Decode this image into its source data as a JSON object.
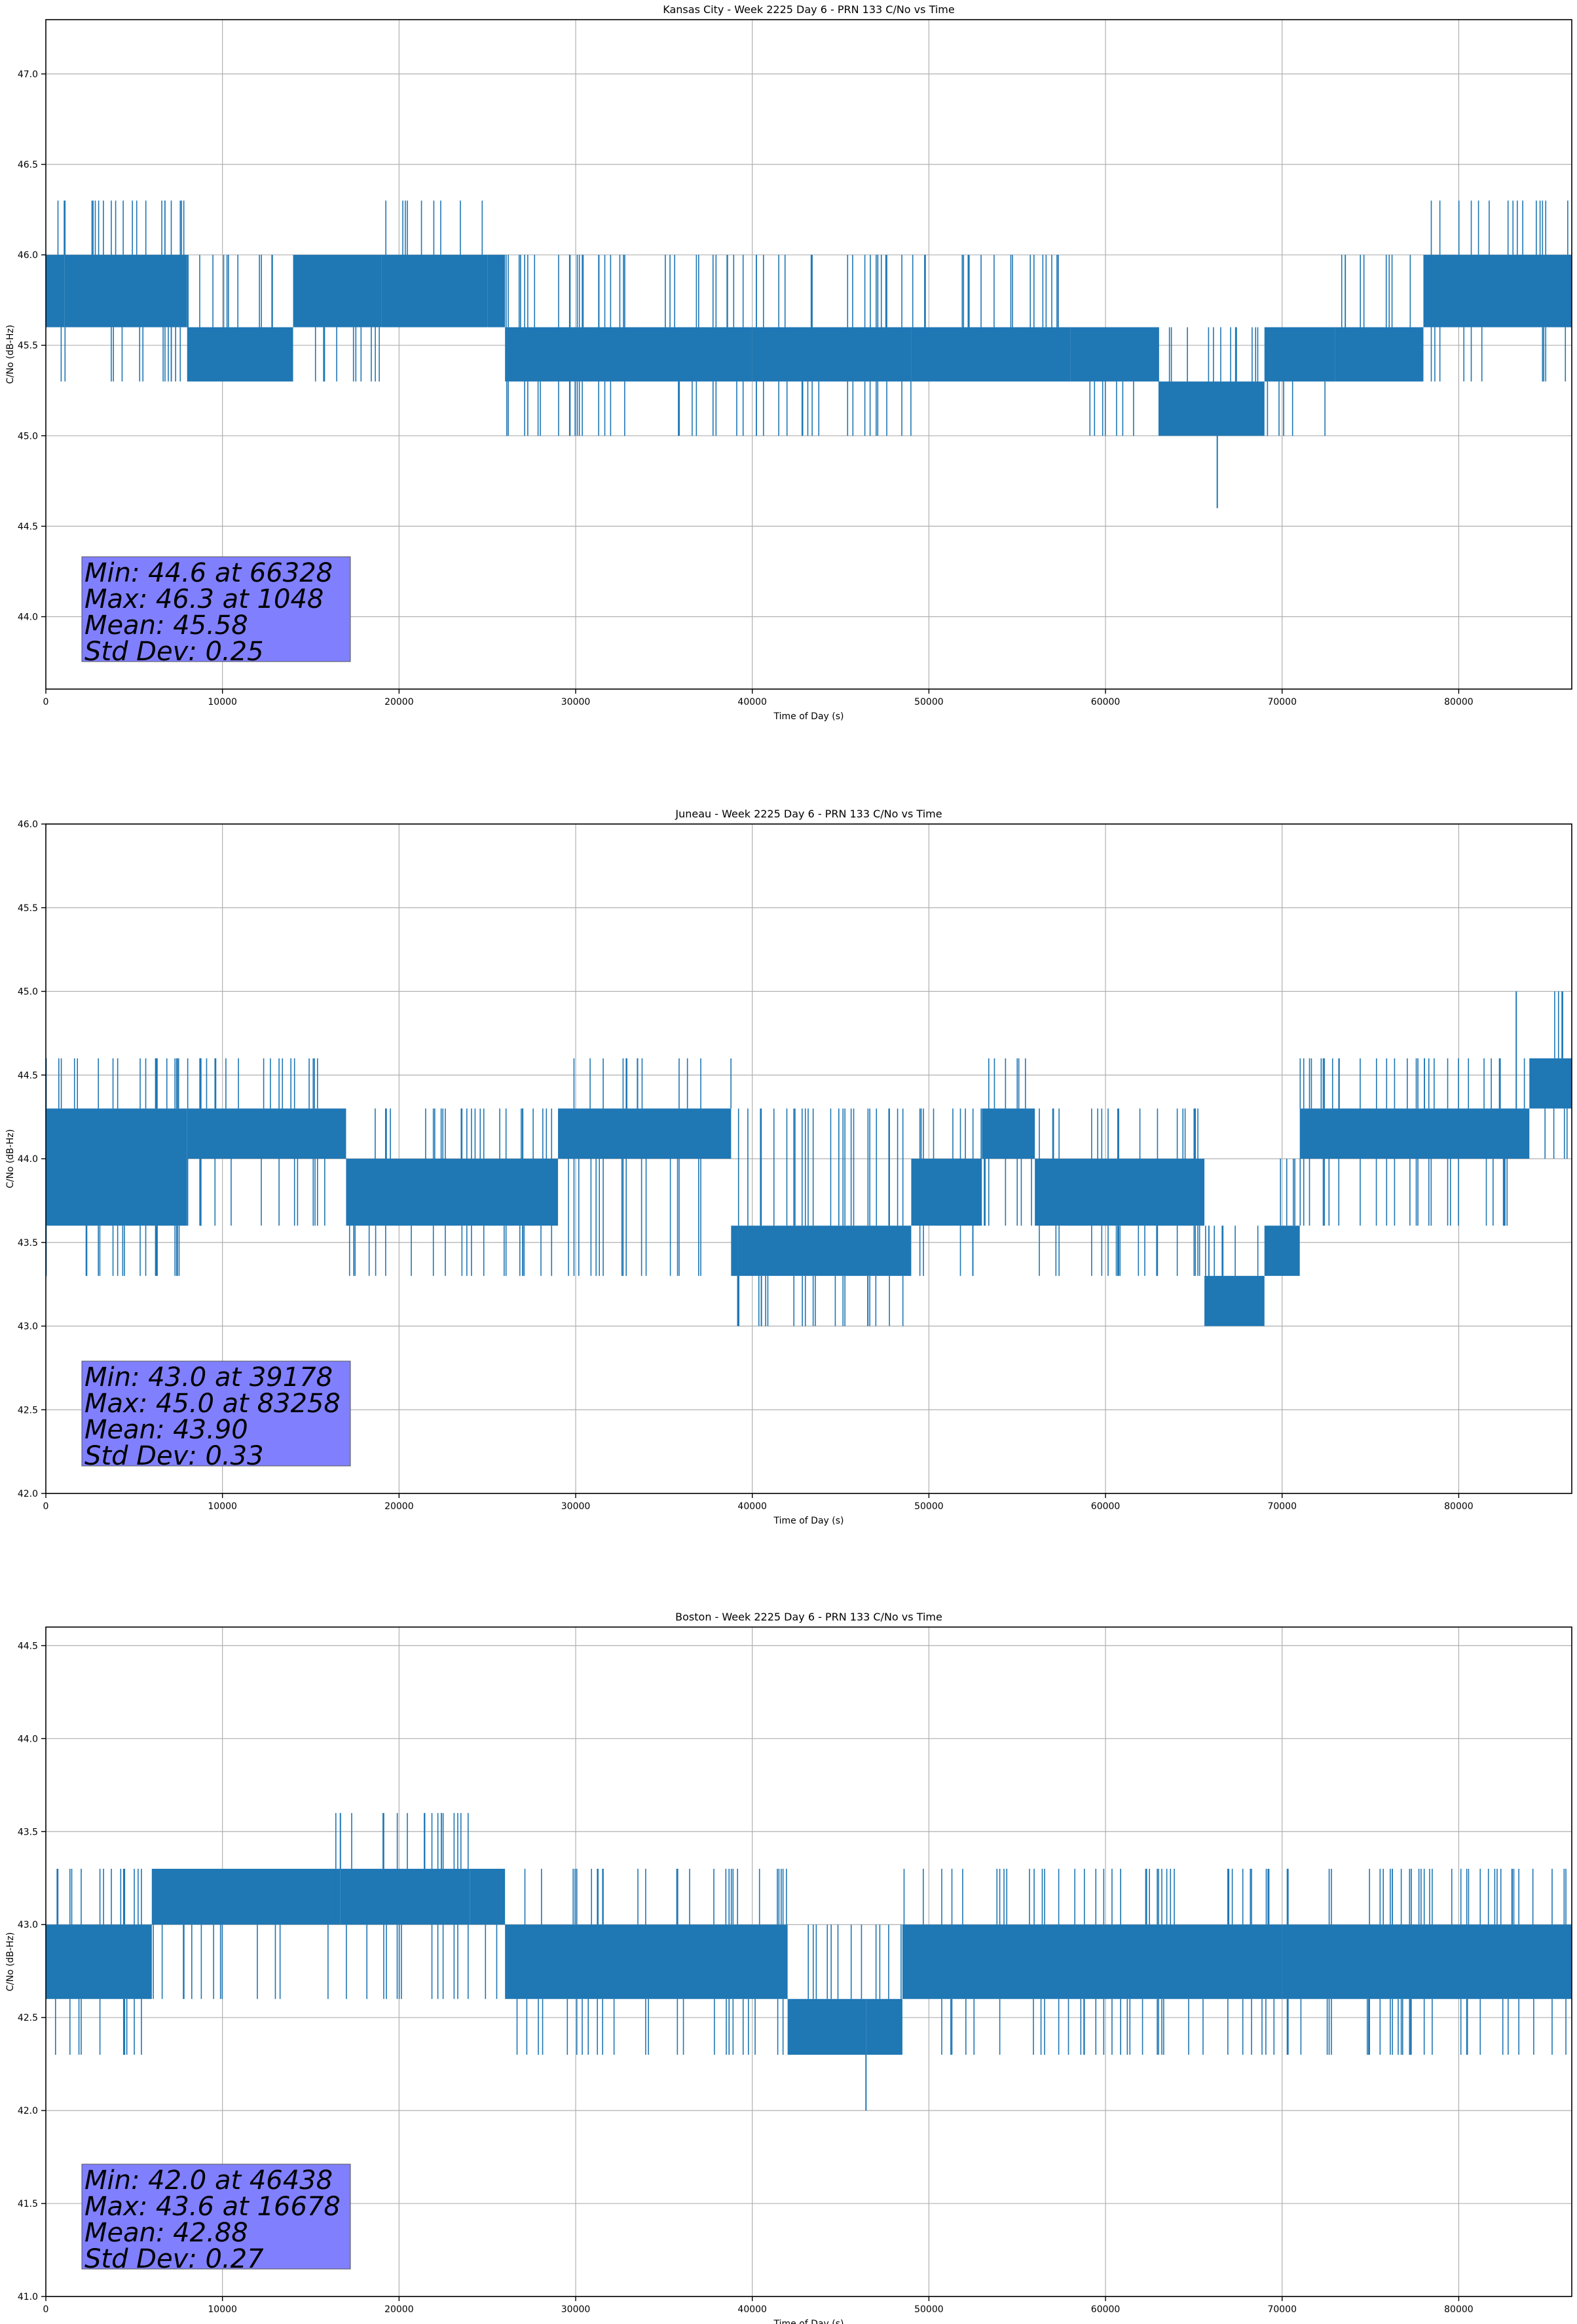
{
  "figure": {
    "background": "#ffffff",
    "line_color": "#1f77b4",
    "stats_box_color": "#8080ff"
  },
  "chart_data": [
    {
      "type": "line",
      "title": "Kansas City - Week 2225 Day 6 - PRN 133 C/No vs Time",
      "xlabel": "Time of Day (s)",
      "ylabel": "C/No (dB-Hz)",
      "xlim": [
        0,
        86400
      ],
      "ylim": [
        43.6,
        47.3
      ],
      "xticks": [
        0,
        10000,
        20000,
        30000,
        40000,
        50000,
        60000,
        70000,
        80000
      ],
      "yticks": [
        44.0,
        44.5,
        45.0,
        45.5,
        46.0,
        46.5,
        47.0
      ],
      "grid": true,
      "series": [
        {
          "name": "C/No",
          "segments": [
            {
              "x": [
                0,
                1048
              ],
              "lo": 45.6,
              "hi": 46.0,
              "spike_lo": 45.3,
              "spike_hi": 46.3
            },
            {
              "x": [
                1048,
                8000
              ],
              "lo": 45.6,
              "hi": 46.0,
              "spike_lo": 45.3,
              "spike_hi": 46.3
            },
            {
              "x": [
                8000,
                14000
              ],
              "lo": 45.3,
              "hi": 45.6,
              "spike_lo": 45.3,
              "spike_hi": 46.0
            },
            {
              "x": [
                14000,
                19000
              ],
              "lo": 45.6,
              "hi": 46.0,
              "spike_lo": 45.3,
              "spike_hi": 46.0
            },
            {
              "x": [
                19000,
                25000
              ],
              "lo": 45.6,
              "hi": 46.0,
              "spike_lo": 45.6,
              "spike_hi": 46.3
            },
            {
              "x": [
                25000,
                26000
              ],
              "lo": 45.6,
              "hi": 46.0,
              "spike_lo": 45.6,
              "spike_hi": 46.0
            },
            {
              "x": [
                26000,
                40000
              ],
              "lo": 45.3,
              "hi": 45.6,
              "spike_lo": 45.0,
              "spike_hi": 46.0
            },
            {
              "x": [
                40000,
                49000
              ],
              "lo": 45.3,
              "hi": 45.6,
              "spike_lo": 45.0,
              "spike_hi": 46.0
            },
            {
              "x": [
                49000,
                58000
              ],
              "lo": 45.3,
              "hi": 45.6,
              "spike_lo": 45.3,
              "spike_hi": 46.0
            },
            {
              "x": [
                58000,
                63000
              ],
              "lo": 45.3,
              "hi": 45.6,
              "spike_lo": 45.0,
              "spike_hi": 45.6
            },
            {
              "x": [
                63000,
                69000
              ],
              "lo": 45.0,
              "hi": 45.3,
              "spike_lo": 45.0,
              "spike_hi": 45.6
            },
            {
              "x": [
                69000,
                73000
              ],
              "lo": 45.3,
              "hi": 45.6,
              "spike_lo": 45.0,
              "spike_hi": 45.6
            },
            {
              "x": [
                73000,
                78000
              ],
              "lo": 45.3,
              "hi": 45.6,
              "spike_lo": 45.3,
              "spike_hi": 46.0
            },
            {
              "x": [
                78000,
                86400
              ],
              "lo": 45.6,
              "hi": 46.0,
              "spike_lo": 45.3,
              "spike_hi": 46.3
            }
          ]
        }
      ],
      "extremes": {
        "min": {
          "x": 66328,
          "y": 44.6
        },
        "max": {
          "x": 1048,
          "y": 46.3
        }
      },
      "annotation": {
        "lines": [
          "Min: 44.6 at 66328",
          "Max: 46.3 at 1048",
          "Mean: 45.58",
          "Std Dev: 0.25"
        ],
        "placement": "bottom-left"
      }
    },
    {
      "type": "line",
      "title": "Juneau - Week 2225 Day 6 - PRN 133 C/No vs Time",
      "xlabel": "Time of Day (s)",
      "ylabel": "C/No (dB-Hz)",
      "xlim": [
        0,
        86400
      ],
      "ylim": [
        42.0,
        46.0
      ],
      "xticks": [
        0,
        10000,
        20000,
        30000,
        40000,
        50000,
        60000,
        70000,
        80000
      ],
      "yticks": [
        42.0,
        42.5,
        43.0,
        43.5,
        44.0,
        44.5,
        45.0,
        45.5,
        46.0
      ],
      "grid": true,
      "series": [
        {
          "name": "C/No",
          "segments": [
            {
              "x": [
                0,
                8000
              ],
              "lo": 43.6,
              "hi": 44.3,
              "spike_lo": 43.3,
              "spike_hi": 44.6
            },
            {
              "x": [
                8000,
                17000
              ],
              "lo": 44.0,
              "hi": 44.3,
              "spike_lo": 43.6,
              "spike_hi": 44.6
            },
            {
              "x": [
                17000,
                29000
              ],
              "lo": 43.6,
              "hi": 44.0,
              "spike_lo": 43.3,
              "spike_hi": 44.3
            },
            {
              "x": [
                29000,
                38800
              ],
              "lo": 44.0,
              "hi": 44.3,
              "spike_lo": 43.3,
              "spike_hi": 44.6
            },
            {
              "x": [
                38800,
                39178
              ],
              "lo": 43.3,
              "hi": 43.6,
              "spike_lo": 43.0,
              "spike_hi": 44.0
            },
            {
              "x": [
                39178,
                49000
              ],
              "lo": 43.3,
              "hi": 43.6,
              "spike_lo": 43.0,
              "spike_hi": 44.3
            },
            {
              "x": [
                49000,
                53000
              ],
              "lo": 43.6,
              "hi": 44.0,
              "spike_lo": 43.3,
              "spike_hi": 44.3
            },
            {
              "x": [
                53000,
                56000
              ],
              "lo": 44.0,
              "hi": 44.3,
              "spike_lo": 43.6,
              "spike_hi": 44.6
            },
            {
              "x": [
                56000,
                65600
              ],
              "lo": 43.6,
              "hi": 44.0,
              "spike_lo": 43.3,
              "spike_hi": 44.3
            },
            {
              "x": [
                65600,
                69000
              ],
              "lo": 43.0,
              "hi": 43.3,
              "spike_lo": 43.0,
              "spike_hi": 43.6
            },
            {
              "x": [
                69000,
                71000
              ],
              "lo": 43.3,
              "hi": 43.6,
              "spike_lo": 43.3,
              "spike_hi": 44.0
            },
            {
              "x": [
                71000,
                84000
              ],
              "lo": 44.0,
              "hi": 44.3,
              "spike_lo": 43.6,
              "spike_hi": 44.6
            },
            {
              "x": [
                84000,
                86400
              ],
              "lo": 44.3,
              "hi": 44.6,
              "spike_lo": 44.0,
              "spike_hi": 45.0
            }
          ]
        }
      ],
      "extremes": {
        "min": {
          "x": 39178,
          "y": 43.0
        },
        "max": {
          "x": 83258,
          "y": 45.0
        }
      },
      "annotation": {
        "lines": [
          "Min: 43.0 at 39178",
          "Max: 45.0 at 83258",
          "Mean: 43.90",
          "Std Dev: 0.33"
        ],
        "placement": "bottom-left"
      }
    },
    {
      "type": "line",
      "title": "Boston - Week 2225 Day 6 - PRN 133 C/No vs Time",
      "xlabel": "Time of Day (s)",
      "ylabel": "C/No (dB-Hz)",
      "xlim": [
        0,
        86400
      ],
      "ylim": [
        41.0,
        44.6
      ],
      "xticks": [
        0,
        10000,
        20000,
        30000,
        40000,
        50000,
        60000,
        70000,
        80000
      ],
      "yticks": [
        41.0,
        41.5,
        42.0,
        42.5,
        43.0,
        43.5,
        44.0,
        44.5
      ],
      "grid": true,
      "series": [
        {
          "name": "C/No",
          "segments": [
            {
              "x": [
                0,
                6000
              ],
              "lo": 42.6,
              "hi": 43.0,
              "spike_lo": 42.3,
              "spike_hi": 43.3
            },
            {
              "x": [
                6000,
                16000
              ],
              "lo": 43.0,
              "hi": 43.3,
              "spike_lo": 42.6,
              "spike_hi": 43.3
            },
            {
              "x": [
                16000,
                16678
              ],
              "lo": 43.0,
              "hi": 43.3,
              "spike_lo": 43.0,
              "spike_hi": 43.6
            },
            {
              "x": [
                16678,
                24000
              ],
              "lo": 43.0,
              "hi": 43.3,
              "spike_lo": 42.6,
              "spike_hi": 43.6
            },
            {
              "x": [
                24000,
                26000
              ],
              "lo": 43.0,
              "hi": 43.3,
              "spike_lo": 42.6,
              "spike_hi": 43.3
            },
            {
              "x": [
                26000,
                42000
              ],
              "lo": 42.6,
              "hi": 43.0,
              "spike_lo": 42.3,
              "spike_hi": 43.3
            },
            {
              "x": [
                42000,
                46438
              ],
              "lo": 42.3,
              "hi": 42.6,
              "spike_lo": 42.3,
              "spike_hi": 43.0
            },
            {
              "x": [
                46438,
                48500
              ],
              "lo": 42.3,
              "hi": 42.6,
              "spike_lo": 42.3,
              "spike_hi": 43.0
            },
            {
              "x": [
                48500,
                70000
              ],
              "lo": 42.6,
              "hi": 43.0,
              "spike_lo": 42.3,
              "spike_hi": 43.3
            },
            {
              "x": [
                70000,
                86400
              ],
              "lo": 42.6,
              "hi": 43.0,
              "spike_lo": 42.3,
              "spike_hi": 43.3
            }
          ]
        }
      ],
      "extremes": {
        "min": {
          "x": 46438,
          "y": 42.0
        },
        "max": {
          "x": 16678,
          "y": 43.6
        }
      },
      "annotation": {
        "lines": [
          "Min: 42.0 at 46438",
          "Max: 43.6 at 16678",
          "Mean: 42.88",
          "Std Dev: 0.27"
        ],
        "placement": "bottom-left"
      }
    }
  ]
}
